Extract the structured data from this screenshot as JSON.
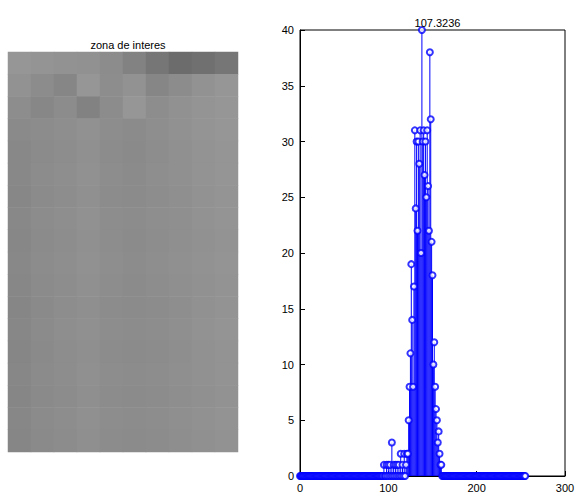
{
  "chart_data": [
    {
      "type": "image",
      "title": "zona de interes",
      "tick_labels": false,
      "color_range": [
        0,
        255
      ],
      "cells": [
        [
          150,
          148,
          146,
          145,
          140,
          130,
          118,
          108,
          112,
          118
        ],
        [
          146,
          140,
          134,
          150,
          141,
          146,
          134,
          140,
          146,
          150
        ],
        [
          141,
          135,
          140,
          130,
          140,
          150,
          141,
          145,
          148,
          150
        ],
        [
          138,
          140,
          142,
          145,
          141,
          139,
          142,
          145,
          148,
          150
        ],
        [
          136,
          139,
          141,
          144,
          140,
          138,
          141,
          144,
          147,
          149
        ],
        [
          136,
          140,
          142,
          145,
          141,
          139,
          142,
          144,
          147,
          149
        ],
        [
          135,
          139,
          141,
          144,
          140,
          139,
          141,
          143,
          146,
          148
        ],
        [
          136,
          140,
          142,
          145,
          141,
          140,
          142,
          143,
          146,
          148
        ],
        [
          135,
          139,
          141,
          144,
          141,
          139,
          141,
          143,
          145,
          147
        ],
        [
          136,
          140,
          142,
          145,
          142,
          140,
          142,
          144,
          146,
          148
        ],
        [
          135,
          139,
          141,
          144,
          141,
          139,
          141,
          143,
          145,
          147
        ],
        [
          134,
          138,
          141,
          143,
          140,
          139,
          140,
          142,
          145,
          147
        ],
        [
          135,
          139,
          142,
          144,
          141,
          140,
          141,
          143,
          146,
          148
        ],
        [
          134,
          138,
          141,
          143,
          140,
          139,
          140,
          142,
          145,
          147
        ],
        [
          135,
          139,
          141,
          144,
          141,
          140,
          141,
          143,
          145,
          147
        ],
        [
          134,
          138,
          140,
          143,
          140,
          139,
          140,
          142,
          144,
          146
        ],
        [
          135,
          139,
          141,
          144,
          141,
          140,
          141,
          143,
          145,
          147
        ],
        [
          134,
          138,
          140,
          143,
          140,
          139,
          140,
          142,
          144,
          146
        ]
      ]
    },
    {
      "type": "stem",
      "title": "107.3236",
      "color": "#0000ff",
      "marker": "circle",
      "grid": false,
      "xlim": [
        0,
        300
      ],
      "xticks": [
        0,
        100,
        200,
        300
      ],
      "ylim": [
        0,
        40
      ],
      "yticks": [
        0,
        5,
        10,
        15,
        20,
        25,
        30,
        35,
        40
      ],
      "x": [
        0,
        1,
        2,
        3,
        4,
        5,
        6,
        7,
        8,
        9,
        10,
        11,
        12,
        13,
        14,
        15,
        16,
        17,
        18,
        19,
        20,
        21,
        22,
        23,
        24,
        25,
        26,
        27,
        28,
        29,
        30,
        31,
        32,
        33,
        34,
        35,
        36,
        37,
        38,
        39,
        40,
        41,
        42,
        43,
        44,
        45,
        46,
        47,
        48,
        49,
        50,
        51,
        52,
        53,
        54,
        55,
        56,
        57,
        58,
        59,
        60,
        61,
        62,
        63,
        64,
        65,
        66,
        67,
        68,
        69,
        70,
        71,
        72,
        73,
        74,
        75,
        76,
        77,
        78,
        79,
        80,
        81,
        82,
        83,
        84,
        85,
        86,
        87,
        88,
        89,
        90,
        91,
        92,
        93,
        94,
        95,
        96,
        97,
        98,
        99,
        100,
        101,
        102,
        103,
        104,
        105,
        106,
        107,
        108,
        109,
        110,
        111,
        112,
        113,
        114,
        115,
        116,
        117,
        118,
        119,
        120,
        121,
        122,
        123,
        124,
        125,
        126,
        127,
        128,
        129,
        130,
        131,
        132,
        133,
        134,
        135,
        136,
        137,
        138,
        139,
        140,
        141,
        142,
        143,
        144,
        145,
        146,
        147,
        148,
        149,
        150,
        151,
        152,
        153,
        154,
        155,
        156,
        157,
        158,
        159,
        160,
        161,
        162,
        163,
        164,
        165,
        166,
        167,
        168,
        169,
        170,
        171,
        172,
        173,
        174,
        175,
        176,
        177,
        178,
        179,
        180,
        181,
        182,
        183,
        184,
        185,
        186,
        187,
        188,
        189,
        190,
        191,
        192,
        193,
        194,
        195,
        196,
        197,
        198,
        199,
        200,
        201,
        202,
        203,
        204,
        205,
        206,
        207,
        208,
        209,
        210,
        211,
        212,
        213,
        214,
        215,
        216,
        217,
        218,
        219,
        220,
        221,
        222,
        223,
        224,
        225,
        226,
        227,
        228,
        229,
        230,
        231,
        232,
        233,
        234,
        235,
        236,
        237,
        238,
        239,
        240,
        241,
        242,
        243,
        244,
        245,
        246,
        247,
        248,
        249,
        250,
        251,
        252,
        253,
        254,
        255
      ],
      "values": [
        0,
        0,
        0,
        0,
        0,
        0,
        0,
        0,
        0,
        0,
        0,
        0,
        0,
        0,
        0,
        0,
        0,
        0,
        0,
        0,
        0,
        0,
        0,
        0,
        0,
        0,
        0,
        0,
        0,
        0,
        0,
        0,
        0,
        0,
        0,
        0,
        0,
        0,
        0,
        0,
        0,
        0,
        0,
        0,
        0,
        0,
        0,
        0,
        0,
        0,
        0,
        0,
        0,
        0,
        0,
        0,
        0,
        0,
        0,
        0,
        0,
        0,
        0,
        0,
        0,
        0,
        0,
        0,
        0,
        0,
        0,
        0,
        0,
        0,
        0,
        0,
        0,
        0,
        0,
        0,
        0,
        0,
        0,
        0,
        0,
        0,
        0,
        0,
        0,
        0,
        0,
        0,
        0,
        0,
        0,
        1,
        0,
        0,
        1,
        0,
        1,
        0,
        1,
        0,
        3,
        0,
        1,
        0,
        1,
        0,
        1,
        0,
        1,
        0,
        2,
        0,
        1,
        0,
        2,
        0,
        1,
        2,
        2,
        5,
        8,
        11,
        19,
        14,
        8,
        17,
        31,
        24,
        30,
        22,
        30,
        28,
        31,
        20,
        40,
        30,
        31,
        27,
        30,
        25,
        31,
        26,
        22,
        38,
        32,
        21,
        18,
        10,
        12,
        8,
        6,
        5,
        3,
        4,
        2,
        1,
        1,
        0,
        0,
        0,
        0,
        0,
        0,
        0,
        0,
        0,
        0,
        0,
        0,
        0,
        0,
        0,
        0,
        0,
        0,
        0,
        0,
        0,
        0,
        0,
        0,
        0,
        0,
        0,
        0,
        0,
        0,
        0,
        0,
        0,
        0,
        0,
        0,
        0,
        0,
        0,
        0,
        0,
        0,
        0,
        0,
        0,
        0,
        0,
        0,
        0,
        0,
        0,
        0,
        0,
        0,
        0,
        0,
        0,
        0,
        0,
        0,
        0,
        0,
        0,
        0,
        0,
        0,
        0,
        0,
        0,
        0,
        0,
        0,
        0,
        0,
        0,
        0,
        0,
        0,
        0,
        0,
        0,
        0,
        0,
        0,
        0,
        0,
        0,
        0,
        0,
        0,
        0,
        0,
        0,
        0,
        0
      ]
    }
  ]
}
